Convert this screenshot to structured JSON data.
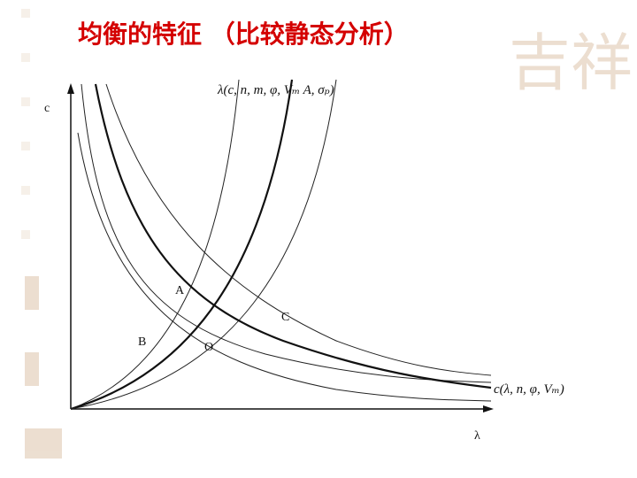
{
  "header": {
    "title": "均衡的特征 （比较静态分析）"
  },
  "diagram": {
    "y_axis_label": "c",
    "x_axis_label": "λ",
    "curve_labels": [
      "λ(c, n, m, φ, Vₘ A, σₚ)",
      "c(λ, n, φ, Vₘ)"
    ],
    "points": [
      "A",
      "B",
      "C",
      "O"
    ]
  }
}
